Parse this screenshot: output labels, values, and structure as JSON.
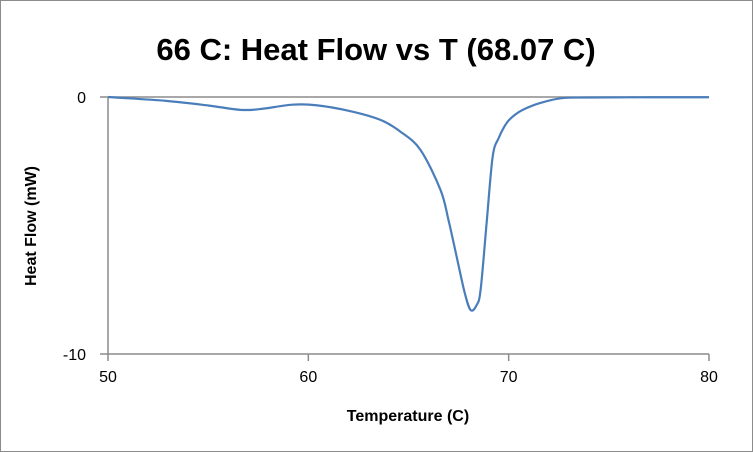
{
  "chart_data": {
    "type": "line",
    "title": "66 C: Heat Flow vs T (68.07 C)",
    "xlabel": "Temperature (C)",
    "ylabel": "Heat Flow (mW)",
    "xlim": [
      50,
      80
    ],
    "ylim": [
      -10,
      0
    ],
    "xticks": [
      "50",
      "60",
      "70",
      "80"
    ],
    "yticks": [
      "0",
      "-10"
    ],
    "grid": "horizontal at 0",
    "legend": "none",
    "series": [
      {
        "name": "Heat Flow",
        "color": "#4a7ebb",
        "x": [
          50,
          52.9,
          55,
          56.6,
          57.6,
          59.2,
          60.4,
          62.1,
          63.6,
          64.6,
          65.6,
          66.6,
          67.0,
          67.4,
          67.8,
          68.1,
          68.4,
          68.6,
          68.9,
          69.2,
          69.5,
          69.9,
          70.3,
          70.7,
          71.5,
          72.6,
          74,
          77,
          80
        ],
        "y": [
          0,
          -0.15,
          -0.33,
          -0.5,
          -0.47,
          -0.3,
          -0.32,
          -0.55,
          -0.89,
          -1.35,
          -2.06,
          -3.62,
          -4.8,
          -6.2,
          -7.6,
          -8.29,
          -8.1,
          -7.5,
          -4.9,
          -2.33,
          -1.6,
          -1.01,
          -0.7,
          -0.5,
          -0.25,
          -0.05,
          -0.02,
          -0.01,
          -0.01
        ]
      }
    ]
  }
}
